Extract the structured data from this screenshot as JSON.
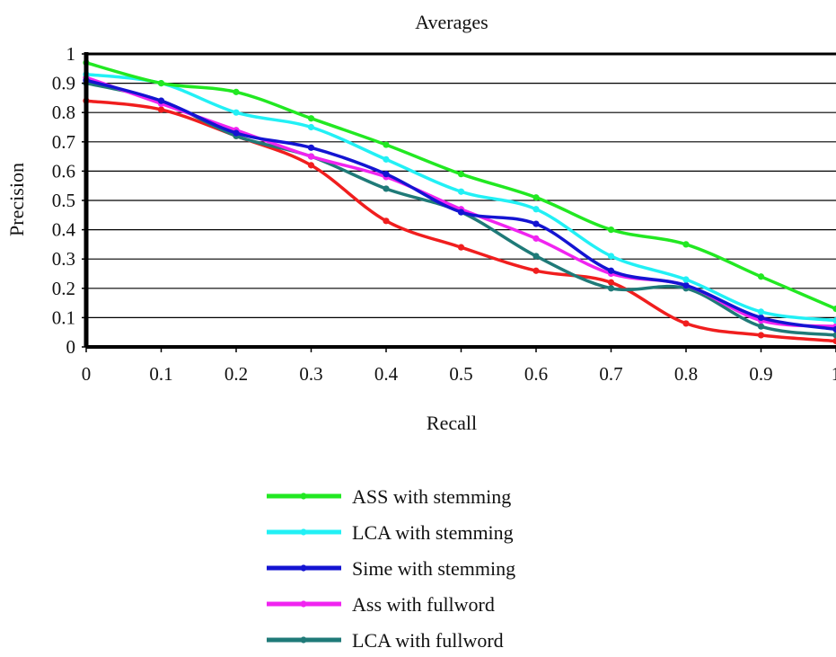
{
  "chart_data": {
    "type": "line",
    "title": "Averages",
    "xlabel": "Recall",
    "ylabel": "Precision",
    "xlim": [
      0,
      1
    ],
    "ylim": [
      0,
      1
    ],
    "x_ticks": [
      "0",
      "0.1",
      "0.2",
      "0.3",
      "0.4",
      "0.5",
      "0.6",
      "0.7",
      "0.8",
      "0.9",
      "1"
    ],
    "y_ticks": [
      "0",
      "0.1",
      "0.2",
      "0.3",
      "0.4",
      "0.5",
      "0.6",
      "0.7",
      "0.8",
      "0.9",
      "1"
    ],
    "grid": "horizontal",
    "legend_position": "bottom",
    "x": [
      0,
      0.1,
      0.2,
      0.3,
      0.4,
      0.5,
      0.6,
      0.7,
      0.8,
      0.9,
      1
    ],
    "series": [
      {
        "name": "ASS with stemming",
        "color": "#22e822",
        "values": [
          0.97,
          0.9,
          0.87,
          0.78,
          0.69,
          0.59,
          0.51,
          0.4,
          0.35,
          0.24,
          0.13
        ]
      },
      {
        "name": "LCA with stemming",
        "color": "#22f0f5",
        "values": [
          0.93,
          0.9,
          0.8,
          0.75,
          0.64,
          0.53,
          0.47,
          0.31,
          0.23,
          0.12,
          0.09
        ]
      },
      {
        "name": "Sime with stemming",
        "color": "#1414d2",
        "values": [
          0.91,
          0.84,
          0.73,
          0.68,
          0.59,
          0.46,
          0.42,
          0.26,
          0.21,
          0.1,
          0.06
        ]
      },
      {
        "name": "Ass with fullword",
        "color": "#f024f0",
        "values": [
          0.92,
          0.83,
          0.74,
          0.65,
          0.58,
          0.47,
          0.37,
          0.25,
          0.21,
          0.09,
          0.07
        ]
      },
      {
        "name": "LCA with fullword",
        "color": "#1f7a78",
        "values": [
          0.9,
          0.84,
          0.72,
          0.65,
          0.54,
          0.46,
          0.31,
          0.2,
          0.2,
          0.07,
          0.04
        ]
      },
      {
        "values": [
          0.84,
          0.81,
          0.72,
          0.62,
          0.43,
          0.34,
          0.26,
          0.22,
          0.08,
          0.04,
          0.02
        ],
        "color": "#f01e1e"
      }
    ]
  }
}
